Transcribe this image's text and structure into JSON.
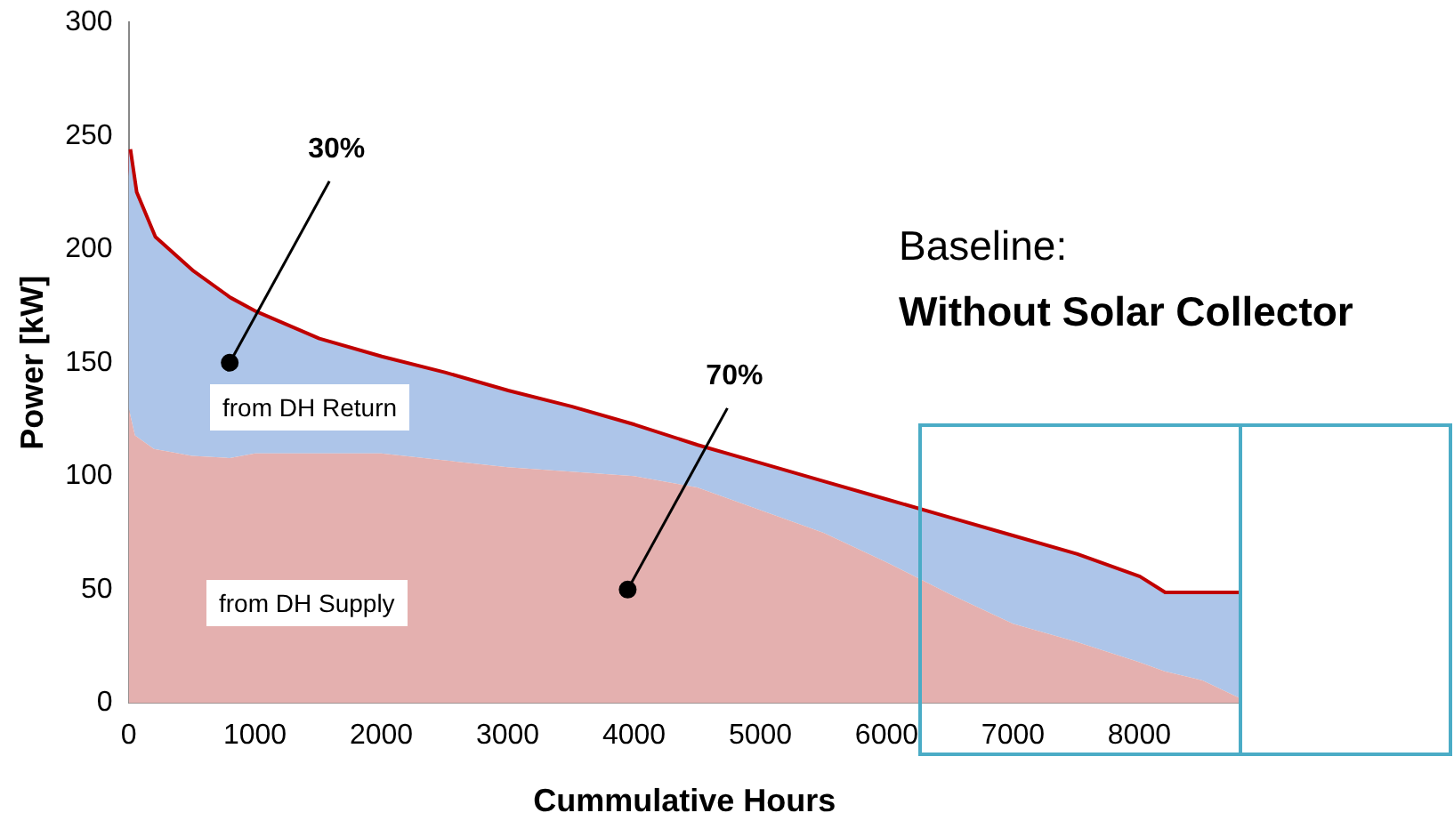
{
  "chart_data": {
    "type": "area",
    "stacked": true,
    "xlabel": "Cummulative Hours",
    "ylabel": "Power [kW]",
    "x": [
      0,
      50,
      200,
      500,
      800,
      1000,
      1500,
      2000,
      2500,
      3000,
      3500,
      4000,
      4500,
      5000,
      5500,
      6000,
      6500,
      7000,
      7500,
      8000,
      8200,
      8500,
      8800
    ],
    "series": [
      {
        "color": "#e4b0af",
        "values": [
          130,
          118,
          112,
          109,
          108,
          110,
          110,
          110,
          107,
          104,
          102,
          100,
          95,
          85,
          75,
          62,
          48,
          35,
          27,
          18,
          14,
          10,
          2
        ]
      },
      {
        "color": "#adc5e9",
        "values": [
          114,
          107,
          93,
          81,
          70,
          62,
          50,
          42,
          38,
          33,
          28,
          22,
          18,
          20,
          22,
          27,
          33,
          38,
          38,
          37,
          34,
          38,
          46
        ]
      },
      {
        "type": "line",
        "color": "#c00000",
        "values": [
          244,
          225,
          205,
          190,
          178,
          172,
          160,
          152,
          145,
          137,
          130,
          122,
          113,
          105,
          97,
          89,
          81,
          73,
          65,
          55,
          48,
          48,
          48
        ]
      }
    ],
    "xlim": [
      0,
      8800
    ],
    "xticks": [
      0,
      1000,
      2000,
      3000,
      4000,
      5000,
      6000,
      7000,
      8000
    ],
    "ylim": [
      0,
      300
    ],
    "yticks": [
      0,
      50,
      100,
      150,
      200,
      250,
      300
    ],
    "grid": false,
    "legend": false,
    "annotations": [
      {
        "text": "30%",
        "x": 800,
        "y": 150
      },
      {
        "text": "70%",
        "x": 3950,
        "y": 50
      },
      "from DH Return",
      "from DH Supply",
      "Baseline:",
      "Without Solar Collector"
    ]
  }
}
